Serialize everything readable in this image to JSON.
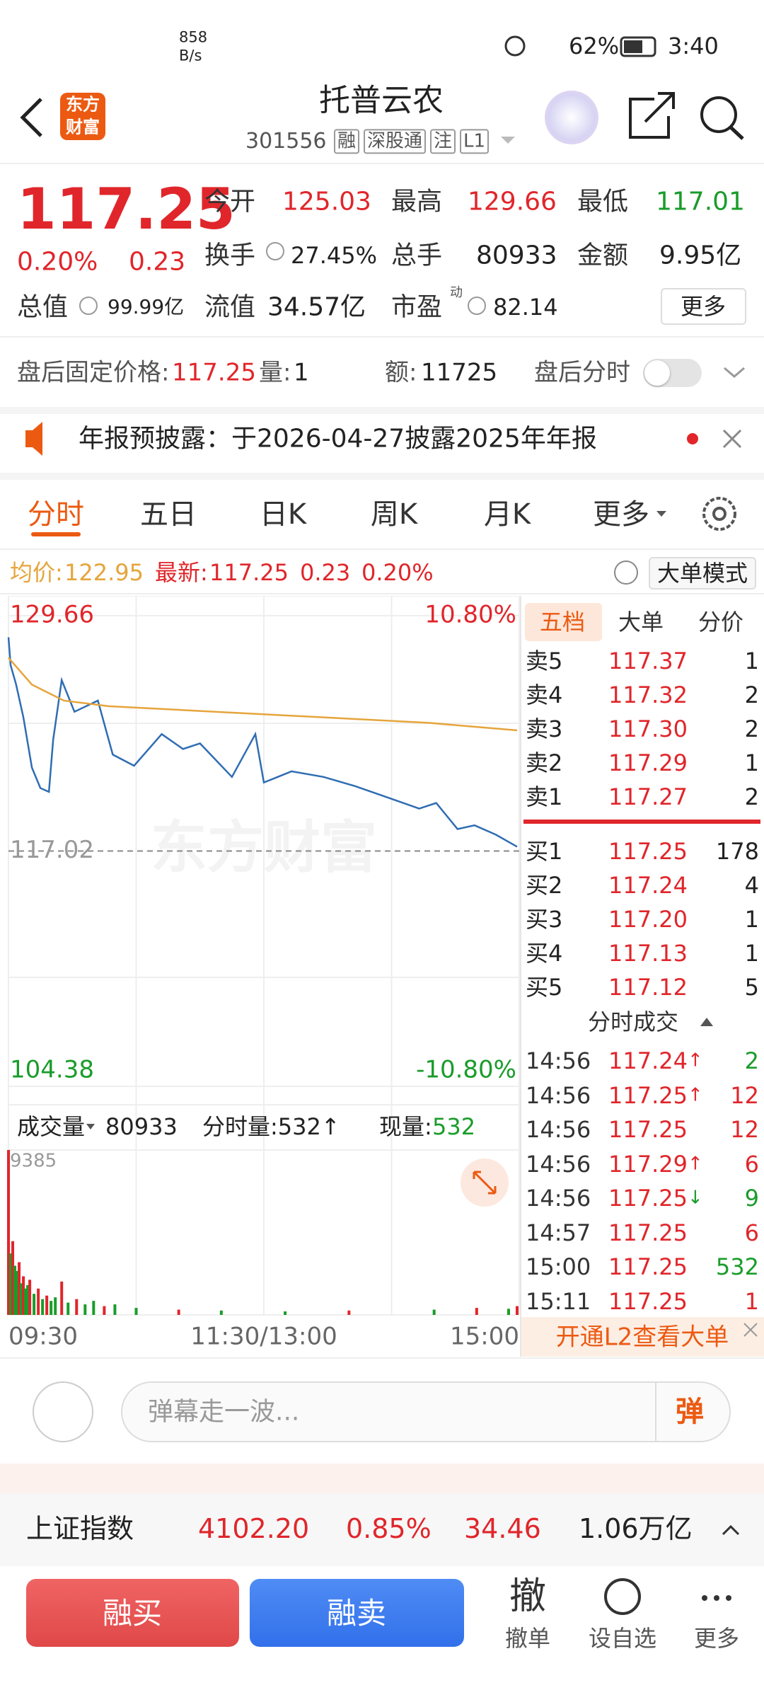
{
  "status_bar": {
    "speed": "858",
    "speed_unit": "B/s",
    "battery": "62%",
    "time": "3:40"
  },
  "header": {
    "logo_line1": "东方",
    "logo_line2": "财富",
    "title": "托普云农",
    "code": "301556",
    "tags": [
      "融",
      "深股通",
      "注",
      "L1"
    ]
  },
  "quote": {
    "price": "117.25",
    "change_pct": "0.20%",
    "change": "0.23",
    "fields": [
      {
        "label": "今开",
        "value": "125.03"
      },
      {
        "label": "最高",
        "value": "129.66"
      },
      {
        "label": "最低",
        "value": "117.01"
      },
      {
        "label": "换手",
        "value": "27.45%"
      },
      {
        "label": "总手",
        "value": "80933"
      },
      {
        "label": "金额",
        "value": "9.95亿"
      },
      {
        "label": "总值",
        "value": "99.99亿"
      },
      {
        "label": "流值",
        "value": "34.57亿"
      },
      {
        "label": "市盈",
        "value": "82.14"
      }
    ],
    "pe_sup": "动",
    "more": "更多"
  },
  "after_hours": {
    "price_label": "盘后固定价格:",
    "price": "117.25",
    "volume_label": "量:",
    "volume": "1",
    "amount_label": "额:",
    "amount": "11725",
    "intraday_label": "盘后分时"
  },
  "notice": {
    "text": "年报预披露：于2026-04-27披露2025年年报"
  },
  "tabs": [
    "分时",
    "五日",
    "日K",
    "周K",
    "月K",
    "更多"
  ],
  "price_info": {
    "avg_label": "均价:",
    "avg": "122.95",
    "latest_label": "最新:",
    "latest": "117.25",
    "change": "0.23",
    "change_pct": "0.20%",
    "mode_button": "大单模式"
  },
  "chart_data": [
    {
      "type": "line",
      "xlim": [
        0,
        240
      ],
      "xticks": [
        {
          "value": 0,
          "label": "09:30"
        },
        {
          "value": 120,
          "label": "11:30/13:00"
        },
        {
          "value": 240,
          "label": "15:00"
        }
      ],
      "ylim": [
        104.38,
        129.66
      ],
      "yticks": [
        104.38,
        117.02,
        129.66
      ],
      "y2lim": [
        -10.8,
        10.8
      ],
      "y2ticks": [
        {
          "value": -10.8,
          "label": "-10.80%"
        },
        {
          "value": 10.8,
          "label": "10.80%"
        }
      ],
      "series": [
        {
          "color": "#2f6db3",
          "x": [
            0,
            1,
            3.5,
            7,
            11,
            15,
            19,
            21,
            25,
            31,
            42,
            49,
            59,
            72,
            82,
            90,
            105,
            116,
            120,
            133,
            148,
            163,
            178,
            193,
            201,
            211,
            219,
            229,
            239
          ],
          "values": [
            128.5,
            127.0,
            126.0,
            124.2,
            121.5,
            120.4,
            120.2,
            123.0,
            126.2,
            124.5,
            125.1,
            122.2,
            121.6,
            123.3,
            122.5,
            122.8,
            121.0,
            123.3,
            120.7,
            121.3,
            121.0,
            120.5,
            119.9,
            119.3,
            119.6,
            118.2,
            118.4,
            117.9,
            117.25
          ]
        },
        {
          "color": "#e5a53c",
          "x": [
            0,
            11,
            26,
            47,
            97,
            148,
            198,
            239
          ],
          "values": [
            127.4,
            125.96,
            125.1,
            124.8,
            124.5,
            124.2,
            123.9,
            123.5
          ]
        }
      ]
    },
    {
      "type": "bar",
      "xlim": [
        0,
        240
      ],
      "ylim": [
        0,
        9385
      ],
      "yticks": [
        9385
      ],
      "x": [
        0,
        1,
        2,
        3,
        4,
        5,
        6,
        7,
        8,
        9,
        10,
        12,
        14,
        16,
        18,
        20,
        22,
        25,
        28,
        32,
        36,
        40,
        45,
        50,
        60,
        80,
        100,
        130,
        160,
        200,
        220,
        235,
        239
      ],
      "values": [
        9385,
        3500,
        4200,
        2800,
        2500,
        3000,
        1800,
        2200,
        1500,
        1700,
        2000,
        1200,
        1500,
        900,
        1100,
        800,
        1000,
        1900,
        700,
        900,
        600,
        800,
        500,
        600,
        400,
        300,
        250,
        200,
        250,
        300,
        400,
        350,
        500
      ],
      "colors": [
        "#e0262b",
        "#1a9c2a",
        "#e0262b",
        "#1a9c2a",
        "#1a9c2a",
        "#e0262b",
        "#1a9c2a",
        "#e0262b",
        "#1a9c2a",
        "#1a9c2a",
        "#e0262b",
        "#1a9c2a",
        "#e0262b",
        "#1a9c2a",
        "#e0262b",
        "#1a9c2a",
        "#1a9c2a",
        "#e0262b",
        "#1a9c2a",
        "#e0262b",
        "#1a9c2a",
        "#1a9c2a",
        "#e0262b",
        "#1a9c2a",
        "#1a9c2a",
        "#e0262b",
        "#1a9c2a",
        "#1a9c2a",
        "#e0262b",
        "#1a9c2a",
        "#e0262b",
        "#1a9c2a",
        "#e0262b"
      ]
    }
  ],
  "chart_watermark": "东方财富",
  "volume_header": {
    "label": "成交量",
    "total": "80933",
    "tick_volume": "分时量:532↑",
    "current_label": "现量:",
    "current": "532"
  },
  "order_book": {
    "tabs": [
      "五档",
      "大单",
      "分价"
    ],
    "asks": [
      {
        "label": "卖5",
        "price": "117.37",
        "volume": "1"
      },
      {
        "label": "卖4",
        "price": "117.32",
        "volume": "2"
      },
      {
        "label": "卖3",
        "price": "117.30",
        "volume": "2"
      },
      {
        "label": "卖2",
        "price": "117.29",
        "volume": "1"
      },
      {
        "label": "卖1",
        "price": "117.27",
        "volume": "2"
      }
    ],
    "bids": [
      {
        "label": "买1",
        "price": "117.25",
        "volume": "178"
      },
      {
        "label": "买2",
        "price": "117.24",
        "volume": "4"
      },
      {
        "label": "买3",
        "price": "117.20",
        "volume": "1"
      },
      {
        "label": "买4",
        "price": "117.13",
        "volume": "1"
      },
      {
        "label": "买5",
        "price": "117.12",
        "volume": "5"
      }
    ]
  },
  "trades": {
    "title": "分时成交",
    "rows": [
      {
        "time": "14:56",
        "price": "117.24",
        "arrow": "↑",
        "volume": "2",
        "color": "#1a9c2a"
      },
      {
        "time": "14:56",
        "price": "117.25",
        "arrow": "↑",
        "volume": "12",
        "color": "#e0262b"
      },
      {
        "time": "14:56",
        "price": "117.25",
        "volume": "12",
        "color": "#e0262b"
      },
      {
        "time": "14:56",
        "price": "117.29",
        "arrow": "↑",
        "volume": "6",
        "color": "#e0262b"
      },
      {
        "time": "14:56",
        "price": "117.25",
        "arrow": "↓",
        "volume": "9",
        "color": "#1a9c2a"
      },
      {
        "time": "14:57",
        "price": "117.25",
        "volume": "6",
        "color": "#e0262b"
      },
      {
        "time": "15:00",
        "price": "117.25",
        "volume": "532",
        "color": "#1a9c2a"
      },
      {
        "time": "15:11",
        "price": "117.25",
        "volume": "1",
        "color": "#e0262b"
      }
    ]
  },
  "l2_banner": "开通L2查看大单",
  "comment": {
    "placeholder": "弹幕走一波...",
    "send": "弹"
  },
  "index_bar": {
    "name": "上证指数",
    "value": "4102.20",
    "change_pct": "0.85%",
    "change": "34.46",
    "amount": "1.06万亿"
  },
  "bottom_bar": {
    "buy": "融买",
    "sell": "融卖",
    "cancel_icon": "撤",
    "cancel": "撤单",
    "watch": "设自选",
    "more": "更多"
  }
}
